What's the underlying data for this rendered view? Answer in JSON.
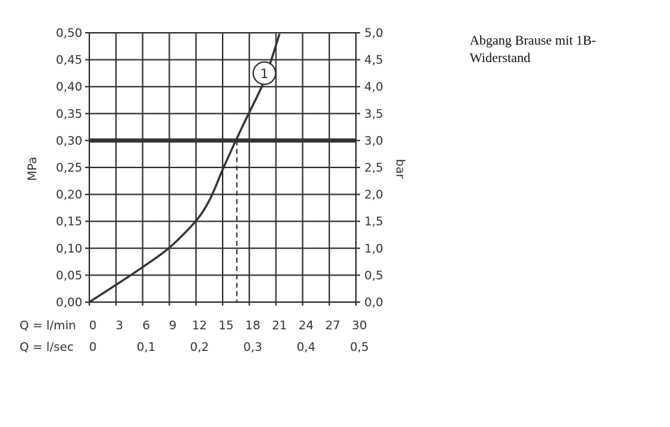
{
  "note": [
    "Abgang Brause mit 1B-",
    "Widerstand"
  ],
  "chart_data": {
    "type": "line",
    "title": "",
    "xlabel": "Q = l/min",
    "xlabel2": "Q = l/sec",
    "ylabel": "MPa",
    "ylabel_right": "bar",
    "xlim": [
      0,
      30
    ],
    "ylim": [
      0,
      0.5
    ],
    "grid": true,
    "x_ticks": [
      "0",
      "3",
      "6",
      "9",
      "12",
      "15",
      "18",
      "21",
      "24",
      "27",
      "30"
    ],
    "x2_ticks": [
      "0",
      "0,1",
      "0,2",
      "0,3",
      "0,4",
      "0,5"
    ],
    "y_ticks": [
      "0,00",
      "0,05",
      "0,10",
      "0,15",
      "0,20",
      "0,25",
      "0,30",
      "0,35",
      "0,40",
      "0,45",
      "0,50"
    ],
    "y_right_ticks": [
      "0,0",
      "0,5",
      "1,0",
      "1,5",
      "2,0",
      "2,5",
      "3,0",
      "3,5",
      "4,0",
      "4,5",
      "5,0"
    ],
    "series": [
      {
        "label": "1",
        "x": [
          0,
          3,
          6,
          9,
          12,
          13.6,
          15,
          16.4,
          17.9,
          19.4,
          20.4,
          21.4
        ],
        "y": [
          0,
          0.032,
          0.065,
          0.101,
          0.151,
          0.192,
          0.246,
          0.297,
          0.349,
          0.4,
          0.446,
          0.498
        ]
      }
    ],
    "reference_line_y": 0.3,
    "reference_drop_x": 16.6,
    "series_label_pos": {
      "x": 19.7,
      "y": 0.425
    },
    "colors": {
      "line": "#333333"
    }
  }
}
